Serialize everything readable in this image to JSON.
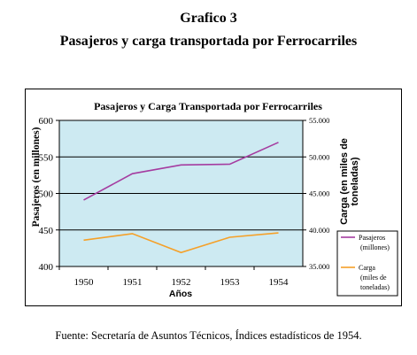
{
  "heading": {
    "line1": "Grafico 3",
    "line2": "Pasajeros y carga transportada por Ferrocarriles"
  },
  "source": "Fuente: Secretaría de Asuntos Técnicos, Índices estadísticos de 1954.",
  "chart_data": {
    "type": "line",
    "title": "Pasajeros y Carga Transportada por Ferrocarriles",
    "xlabel": "Años",
    "ylabel": "Pasajeros (en millones)",
    "y2label": "Carga (en miles de toneladas)",
    "categories": [
      "1950",
      "1951",
      "1952",
      "1953",
      "1954"
    ],
    "ylim": [
      400,
      600
    ],
    "yticks": [
      "400",
      "450",
      "500",
      "550",
      "600"
    ],
    "y2lim": [
      35000,
      55000
    ],
    "y2ticks": [
      "35.000",
      "40.000",
      "45.000",
      "50.000",
      "55.000"
    ],
    "grid": true,
    "legend_position": "right",
    "plot_background": "#cdeaf2",
    "series": [
      {
        "name": "Pasajeros (millones)",
        "legend_lines": [
          "Pasajeros",
          "(millones)"
        ],
        "axis": "left",
        "color": "#a53ca0",
        "values": [
          491,
          527,
          539,
          540,
          570
        ]
      },
      {
        "name": "Carga (miles de toneladas)",
        "legend_lines": [
          "Carga",
          "(miles de",
          "toneladas)"
        ],
        "axis": "right",
        "color": "#f5a028",
        "values": [
          38600,
          39500,
          36900,
          39000,
          39600
        ]
      }
    ]
  }
}
